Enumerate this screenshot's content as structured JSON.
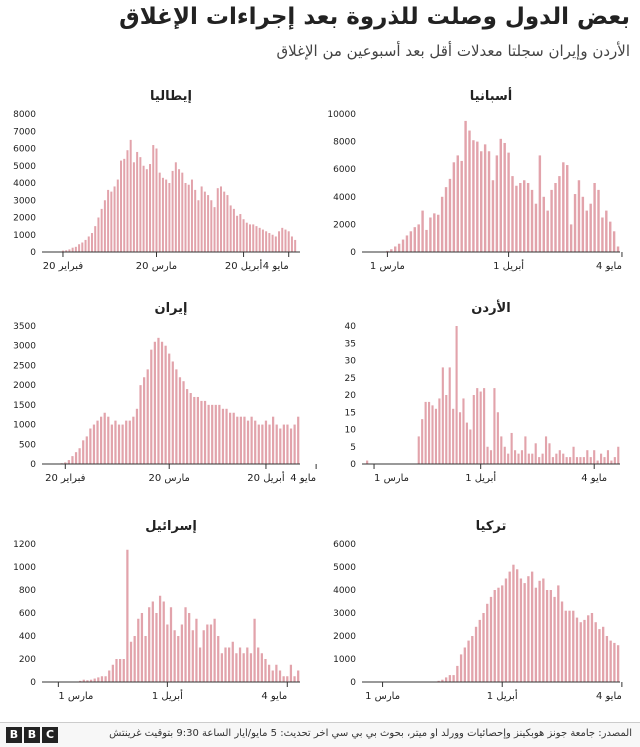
{
  "header": {
    "title": "بعض الدول وصلت للذروة بعد إجراءات الإغلاق",
    "subtitle": "الأردن وإيران سجلتا معدلات أقل بعد أسبوعين من الإغلاق"
  },
  "footer": {
    "logo_letters": [
      "B",
      "B",
      "C"
    ],
    "source": "المصدر: جامعة جونز هوبكينز وإحصائيات وورلد أو ميتر، بحوث بي بي سي آخر تحديث: 5 مايو/أيار الساعة 9:30 بتوقيت غرينتش"
  },
  "colors": {
    "bar": "#e2a3ab",
    "axis": "#333333",
    "text": "#222222"
  },
  "chart_data": [
    {
      "type": "bar",
      "title": "إيطاليا",
      "ylim": [
        0,
        8000
      ],
      "yticks": [
        0,
        1000,
        2000,
        3000,
        4000,
        5000,
        6000,
        7000,
        8000
      ],
      "xticks": [
        {
          "i": 6,
          "label": "20 فبراير"
        },
        {
          "i": 35,
          "label": "20 مارس"
        },
        {
          "i": 62,
          "label": "20 أبريل"
        },
        {
          "i": 76,
          "label": "4 مايو"
        }
      ],
      "values": [
        0,
        0,
        0,
        0,
        10,
        30,
        80,
        100,
        150,
        250,
        300,
        450,
        550,
        700,
        900,
        1100,
        1500,
        2000,
        2500,
        3000,
        3600,
        3500,
        3800,
        4200,
        5300,
        5400,
        5900,
        6500,
        5200,
        5800,
        5500,
        5000,
        4800,
        5100,
        6200,
        6000,
        4600,
        4300,
        4200,
        4000,
        4700,
        5200,
        4800,
        4600,
        4000,
        3900,
        4200,
        3600,
        3000,
        3800,
        3500,
        3300,
        3000,
        2600,
        3700,
        3800,
        3500,
        3300,
        2700,
        2500,
        2100,
        2200,
        1900,
        1700,
        1600,
        1600,
        1500,
        1400,
        1300,
        1200,
        1100,
        1000,
        900,
        1200,
        1400,
        1300,
        1200,
        900,
        700,
        0
      ]
    },
    {
      "type": "bar",
      "title": "أسبانيا",
      "ylim": [
        0,
        10000
      ],
      "yticks": [
        0,
        2000,
        4000,
        6000,
        8000,
        10000
      ],
      "xticks": [
        {
          "i": 6,
          "label": "1 مارس"
        },
        {
          "i": 37,
          "label": "1 أبريل"
        },
        {
          "i": 66,
          "label": "4 مايو"
        }
      ],
      "values": [
        0,
        0,
        0,
        0,
        10,
        30,
        80,
        200,
        400,
        600,
        900,
        1200,
        1500,
        1800,
        2000,
        3000,
        1600,
        2500,
        2800,
        2700,
        4000,
        4700,
        5300,
        6500,
        7000,
        6600,
        9500,
        8800,
        8100,
        8000,
        7300,
        7800,
        7300,
        5200,
        7000,
        8200,
        7900,
        7200,
        5500,
        4800,
        5000,
        5200,
        5000,
        4500,
        3500,
        7000,
        4000,
        3000,
        4500,
        5000,
        5500,
        6500,
        6300,
        2000,
        4200,
        5200,
        4000,
        3000,
        3500,
        5000,
        4500,
        2500,
        3000,
        2200,
        1500,
        400
      ]
    },
    {
      "type": "bar",
      "title": "إيران",
      "ylim": [
        0,
        3500
      ],
      "yticks": [
        0,
        500,
        1000,
        1500,
        2000,
        2500,
        3000,
        3500
      ],
      "xticks": [
        {
          "i": 6,
          "label": "20 فبراير"
        },
        {
          "i": 35,
          "label": "20 مارس"
        },
        {
          "i": 62,
          "label": "20 أبريل"
        },
        {
          "i": 76,
          "label": "4 مايو"
        }
      ],
      "values": [
        0,
        0,
        0,
        0,
        0,
        20,
        40,
        100,
        200,
        300,
        400,
        600,
        700,
        900,
        1000,
        1100,
        1200,
        1300,
        1200,
        1000,
        1100,
        1000,
        1000,
        1100,
        1100,
        1200,
        1400,
        2000,
        2200,
        2400,
        2900,
        3100,
        3200,
        3100,
        3000,
        2800,
        2600,
        2400,
        2200,
        2100,
        1900,
        1800,
        1700,
        1700,
        1600,
        1600,
        1500,
        1500,
        1500,
        1500,
        1400,
        1400,
        1300,
        1300,
        1200,
        1200,
        1200,
        1100,
        1200,
        1100,
        1000,
        1000,
        1100,
        1000,
        1200,
        1000,
        900,
        1000,
        1000,
        900,
        1000,
        1200
      ]
    },
    {
      "type": "bar",
      "title": "الأردن",
      "ylim": [
        0,
        40
      ],
      "yticks": [
        0,
        5,
        10,
        15,
        20,
        25,
        30,
        35,
        40
      ],
      "xticks": [
        {
          "i": 3,
          "label": "1 مارس"
        },
        {
          "i": 34,
          "label": "1 أبريل"
        },
        {
          "i": 67,
          "label": "4 مايو"
        }
      ],
      "values": [
        0,
        1,
        0,
        0,
        0,
        0,
        0,
        0,
        0,
        0,
        0,
        0,
        0,
        0,
        0,
        0,
        8,
        13,
        18,
        18,
        17,
        16,
        19,
        28,
        20,
        28,
        16,
        40,
        15,
        19,
        12,
        10,
        20,
        22,
        21,
        22,
        5,
        4,
        22,
        15,
        8,
        5,
        3,
        9,
        4,
        3,
        4,
        8,
        3,
        3,
        6,
        2,
        3,
        8,
        6,
        2,
        3,
        4,
        3,
        2,
        2,
        5,
        2,
        2,
        2,
        4,
        2,
        4,
        1,
        3,
        2,
        4,
        1,
        2,
        5
      ]
    },
    {
      "type": "bar",
      "title": "إسرائيل",
      "ylim": [
        0,
        1200
      ],
      "yticks": [
        0,
        200,
        400,
        600,
        800,
        1000,
        1200
      ],
      "xticks": [
        {
          "i": 4,
          "label": "1 مارس"
        },
        {
          "i": 34,
          "label": "1 أبريل"
        },
        {
          "i": 67,
          "label": "4 مايو"
        }
      ],
      "values": [
        0,
        0,
        0,
        0,
        0,
        0,
        0,
        0,
        0,
        0,
        10,
        20,
        15,
        20,
        30,
        40,
        50,
        50,
        100,
        150,
        200,
        200,
        200,
        1150,
        350,
        400,
        550,
        600,
        400,
        650,
        700,
        600,
        750,
        700,
        500,
        650,
        450,
        400,
        500,
        650,
        600,
        450,
        550,
        300,
        450,
        500,
        500,
        550,
        400,
        250,
        300,
        300,
        350,
        250,
        300,
        250,
        300,
        250,
        550,
        300,
        250,
        200,
        150,
        100,
        150,
        100,
        50,
        50,
        150,
        50,
        100
      ]
    },
    {
      "type": "bar",
      "title": "تركيا",
      "ylim": [
        0,
        6000
      ],
      "yticks": [
        0,
        1000,
        2000,
        3000,
        4000,
        5000,
        6000
      ],
      "xticks": [
        {
          "i": 5,
          "label": "1 مارس"
        },
        {
          "i": 37,
          "label": "1 أبريل"
        },
        {
          "i": 69,
          "label": "4 مايو"
        }
      ],
      "values": [
        0,
        0,
        0,
        0,
        0,
        0,
        0,
        0,
        0,
        0,
        0,
        0,
        0,
        0,
        0,
        0,
        0,
        0,
        0,
        10,
        50,
        100,
        200,
        300,
        300,
        700,
        1200,
        1500,
        1800,
        2000,
        2400,
        2700,
        3000,
        3400,
        3700,
        4000,
        4100,
        4200,
        4500,
        4800,
        5100,
        4900,
        4500,
        4300,
        4600,
        4800,
        4100,
        4400,
        4500,
        4000,
        4000,
        3700,
        4200,
        3500,
        3100,
        3100,
        3100,
        2800,
        2600,
        2700,
        2900,
        3000,
        2600,
        2300,
        2400,
        2000,
        1800,
        1700,
        1600
      ]
    }
  ]
}
